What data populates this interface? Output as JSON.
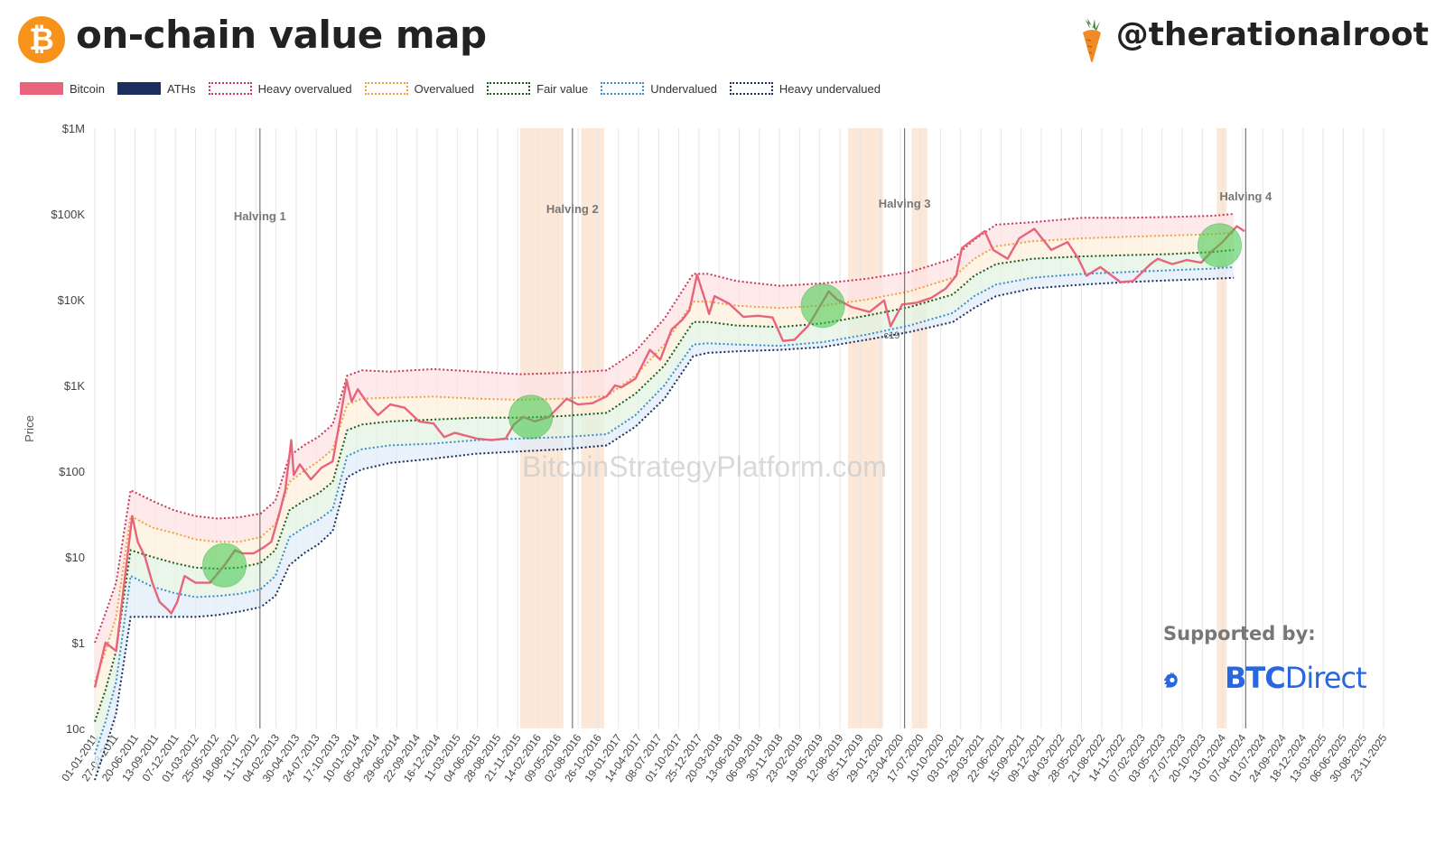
{
  "header": {
    "title": "on-chain value map",
    "handle": "@therationalroot",
    "logo_glyph": "₿"
  },
  "legend": [
    {
      "label": "Bitcoin",
      "color": "#e8647c",
      "style": "solid"
    },
    {
      "label": "ATHs",
      "color": "#1b2f5e",
      "style": "solid"
    },
    {
      "label": "Heavy overvalued",
      "color": "#c8375a",
      "style": "dotted"
    },
    {
      "label": "Overvalued",
      "color": "#f0a040",
      "style": "dotted"
    },
    {
      "label": "Fair value",
      "color": "#1a5c1a",
      "style": "dotted"
    },
    {
      "label": "Undervalued",
      "color": "#3a8ec8",
      "style": "dotted"
    },
    {
      "label": "Heavy undervalued",
      "color": "#1b2f5e",
      "style": "dotted"
    }
  ],
  "watermark": "BitcoinStrategyPlatform.com",
  "supported_by": "Supported by:",
  "sponsor": {
    "bold": "BTC",
    "rest": "Direct"
  },
  "chart_data": {
    "type": "line",
    "y_scale": "log",
    "ylabel": "Price",
    "ylim": [
      0.1,
      1000000
    ],
    "y_ticks": [
      {
        "value": 0.1,
        "label": "10c"
      },
      {
        "value": 1,
        "label": "$1"
      },
      {
        "value": 10,
        "label": "$10"
      },
      {
        "value": 100,
        "label": "$100"
      },
      {
        "value": 1000,
        "label": "$1K"
      },
      {
        "value": 10000,
        "label": "$10K"
      },
      {
        "value": 100000,
        "label": "$100K"
      },
      {
        "value": 1000000,
        "label": "$1M"
      }
    ],
    "xlim": [
      "2011-01-01",
      "2025-11-23"
    ],
    "x_ticks": [
      "01-01-2011",
      "27-03-2011",
      "20-06-2011",
      "13-09-2011",
      "07-12-2011",
      "01-03-2012",
      "25-05-2012",
      "18-08-2012",
      "11-11-2012",
      "04-02-2013",
      "30-04-2013",
      "24-07-2013",
      "17-10-2013",
      "10-01-2014",
      "05-04-2014",
      "29-06-2014",
      "22-09-2014",
      "16-12-2014",
      "11-03-2015",
      "04-06-2015",
      "28-08-2015",
      "21-11-2015",
      "14-02-2016",
      "09-05-2016",
      "02-08-2016",
      "26-10-2016",
      "19-01-2017",
      "14-04-2017",
      "08-07-2017",
      "01-10-2017",
      "25-12-2017",
      "20-03-2018",
      "13-06-2018",
      "06-09-2018",
      "30-11-2018",
      "23-02-2019",
      "19-05-2019",
      "12-08-2019",
      "05-11-2019",
      "29-01-2020",
      "23-04-2020",
      "17-07-2020",
      "10-10-2020",
      "03-01-2021",
      "29-03-2021",
      "22-06-2021",
      "15-09-2021",
      "09-12-2021",
      "04-03-2022",
      "28-05-2022",
      "21-08-2022",
      "14-11-2022",
      "07-02-2023",
      "03-05-2023",
      "27-07-2023",
      "20-10-2023",
      "13-01-2024",
      "07-04-2024",
      "01-07-2024",
      "24-09-2024",
      "18-12-2024",
      "13-03-2025",
      "06-06-2025",
      "30-08-2025",
      "23-11-2025"
    ],
    "halvings": [
      {
        "label": "Halving 1",
        "date": "2012-11-28"
      },
      {
        "label": "Halving 2",
        "date": "2016-07-09"
      },
      {
        "label": "Halving 3",
        "date": "2020-05-11"
      },
      {
        "label": "Halving 4",
        "date": "2024-04-20"
      }
    ],
    "shaded_periods": [
      {
        "start": "2015-12-01",
        "end": "2016-06-01"
      },
      {
        "start": "2016-08-15",
        "end": "2016-11-20"
      },
      {
        "start": "2019-09-15",
        "end": "2020-02-10"
      },
      {
        "start": "2020-06-10",
        "end": "2020-08-15"
      },
      {
        "start": "2023-12-20",
        "end": "2024-01-31"
      }
    ],
    "annotation": {
      "text": "c19",
      "date": "2020-03-15",
      "value": 4500
    },
    "highlight_circles": [
      {
        "date": "2012-07-01",
        "value": 8
      },
      {
        "date": "2016-01-15",
        "value": 430
      },
      {
        "date": "2019-06-01",
        "value": 8500
      },
      {
        "date": "2024-01-01",
        "value": 43000
      }
    ],
    "bands": {
      "x": [
        "2011-01-01",
        "2011-02-15",
        "2011-04-01",
        "2011-06-01",
        "2011-09-01",
        "2011-12-01",
        "2012-03-01",
        "2012-06-01",
        "2012-09-01",
        "2012-12-01",
        "2013-02-01",
        "2013-04-01",
        "2013-06-01",
        "2013-08-01",
        "2013-10-01",
        "2013-12-01",
        "2014-02-01",
        "2014-06-01",
        "2014-12-01",
        "2015-06-01",
        "2015-12-01",
        "2016-06-01",
        "2016-12-01",
        "2017-04-01",
        "2017-08-01",
        "2017-12-01",
        "2018-02-01",
        "2018-06-01",
        "2018-12-01",
        "2019-06-01",
        "2019-12-01",
        "2020-06-01",
        "2020-12-01",
        "2021-03-01",
        "2021-06-01",
        "2021-11-01",
        "2022-06-01",
        "2022-12-01",
        "2023-06-01",
        "2023-12-01",
        "2024-03-01"
      ],
      "series": [
        {
          "name": "Heavy overvalued",
          "values": [
            1.0,
            2.2,
            5,
            60,
            45,
            35,
            30,
            28,
            29,
            32,
            45,
            150,
            200,
            250,
            350,
            1300,
            1500,
            1450,
            1550,
            1450,
            1350,
            1400,
            1500,
            2500,
            6000,
            20000,
            20000,
            16500,
            14500,
            15500,
            17500,
            21000,
            30000,
            50000,
            75000,
            80000,
            90000,
            90000,
            92000,
            95000,
            100000
          ]
        },
        {
          "name": "Overvalued",
          "values": [
            0.35,
            0.8,
            2.0,
            30,
            22,
            19,
            16,
            15,
            15,
            17,
            24,
            75,
            100,
            130,
            180,
            600,
            700,
            720,
            740,
            700,
            680,
            700,
            750,
            1300,
            3000,
            9500,
            9500,
            8500,
            8000,
            8500,
            10000,
            12500,
            18000,
            30000,
            42000,
            48000,
            52000,
            54000,
            56000,
            58000,
            60000
          ]
        },
        {
          "name": "Fair value",
          "values": [
            0.12,
            0.28,
            0.8,
            12,
            10,
            8.5,
            7.5,
            7.3,
            7.5,
            8.5,
            12,
            35,
            45,
            55,
            75,
            300,
            350,
            380,
            400,
            420,
            420,
            440,
            480,
            800,
            1700,
            5500,
            5500,
            5000,
            4800,
            5300,
            6500,
            8200,
            11500,
            19000,
            26000,
            30000,
            32000,
            33000,
            34000,
            36000,
            38000
          ]
        },
        {
          "name": "Undervalued",
          "values": [
            0.05,
            0.12,
            0.35,
            6,
            4.5,
            3.8,
            3.4,
            3.5,
            3.7,
            4.2,
            6,
            17,
            22,
            27,
            36,
            150,
            180,
            200,
            210,
            230,
            240,
            250,
            270,
            450,
            1000,
            3000,
            3100,
            3000,
            2900,
            3200,
            3900,
            5000,
            7000,
            11000,
            15000,
            18000,
            20000,
            21000,
            22000,
            23000,
            24000
          ]
        },
        {
          "name": "Heavy undervalued",
          "values": [
            0.025,
            0.06,
            0.15,
            2.0,
            2.0,
            2.0,
            2.0,
            2.1,
            2.3,
            2.6,
            3.5,
            8,
            11,
            14,
            20,
            85,
            105,
            125,
            140,
            160,
            170,
            180,
            200,
            330,
            700,
            2200,
            2400,
            2500,
            2600,
            2800,
            3400,
            4200,
            5500,
            8000,
            11000,
            13500,
            15000,
            16000,
            16800,
            17500,
            18000
          ]
        }
      ]
    },
    "bitcoin": {
      "x": [
        "2011-01-01",
        "2011-02-15",
        "2011-04-01",
        "2011-05-01",
        "2011-06-08",
        "2011-07-01",
        "2011-08-01",
        "2011-09-01",
        "2011-10-01",
        "2011-11-01",
        "2011-11-20",
        "2011-12-15",
        "2012-01-15",
        "2012-03-01",
        "2012-05-01",
        "2012-07-01",
        "2012-08-15",
        "2012-09-15",
        "2012-11-01",
        "2012-12-15",
        "2013-01-15",
        "2013-02-15",
        "2013-03-15",
        "2013-04-09",
        "2013-04-20",
        "2013-05-15",
        "2013-07-01",
        "2013-08-15",
        "2013-10-01",
        "2013-11-01",
        "2013-11-29",
        "2013-12-20",
        "2014-01-15",
        "2014-03-01",
        "2014-04-10",
        "2014-06-01",
        "2014-08-01",
        "2014-10-01",
        "2014-12-01",
        "2015-01-15",
        "2015-03-01",
        "2015-06-01",
        "2015-08-01",
        "2015-10-01",
        "2015-11-05",
        "2015-12-15",
        "2016-02-01",
        "2016-04-01",
        "2016-06-15",
        "2016-08-01",
        "2016-10-01",
        "2016-12-01",
        "2017-01-05",
        "2017-02-01",
        "2017-04-01",
        "2017-06-01",
        "2017-07-15",
        "2017-09-01",
        "2017-10-15",
        "2017-11-15",
        "2017-12-17",
        "2018-01-15",
        "2018-02-06",
        "2018-03-01",
        "2018-05-01",
        "2018-07-01",
        "2018-09-01",
        "2018-11-01",
        "2018-12-15",
        "2019-02-01",
        "2019-04-01",
        "2019-06-26",
        "2019-08-01",
        "2019-10-01",
        "2019-12-15",
        "2020-02-15",
        "2020-03-13",
        "2020-05-01",
        "2020-07-01",
        "2020-09-01",
        "2020-11-01",
        "2020-12-15",
        "2021-01-08",
        "2021-02-15",
        "2021-04-14",
        "2021-05-20",
        "2021-07-20",
        "2021-09-07",
        "2021-11-10",
        "2022-01-20",
        "2022-03-30",
        "2022-05-15",
        "2022-06-18",
        "2022-08-15",
        "2022-11-09",
        "2023-01-01",
        "2023-03-15",
        "2023-04-15",
        "2023-06-15",
        "2023-08-15",
        "2023-10-15",
        "2023-12-01",
        "2024-01-10",
        "2024-03-14",
        "2024-04-15"
      ],
      "values": [
        0.3,
        1.0,
        0.8,
        4,
        30,
        15,
        10,
        5,
        3,
        2.5,
        2.2,
        3,
        6,
        5,
        5,
        8,
        12,
        11,
        11,
        13,
        15,
        30,
        60,
        230,
        90,
        120,
        80,
        110,
        130,
        400,
        1150,
        650,
        900,
        600,
        450,
        600,
        550,
        380,
        360,
        250,
        280,
        240,
        230,
        240,
        350,
        430,
        380,
        430,
        700,
        600,
        620,
        750,
        1000,
        950,
        1200,
        2600,
        2000,
        4500,
        5800,
        7500,
        19500,
        11000,
        6800,
        11000,
        9000,
        6300,
        6500,
        6200,
        3300,
        3400,
        5000,
        12500,
        10000,
        8200,
        7200,
        9800,
        4900,
        8800,
        9200,
        10500,
        13500,
        19000,
        40000,
        48000,
        63000,
        38000,
        30000,
        52000,
        67000,
        38000,
        47000,
        30000,
        19000,
        24000,
        16000,
        16500,
        26000,
        30000,
        26000,
        29000,
        27000,
        37000,
        46000,
        72000,
        63000
      ]
    }
  }
}
